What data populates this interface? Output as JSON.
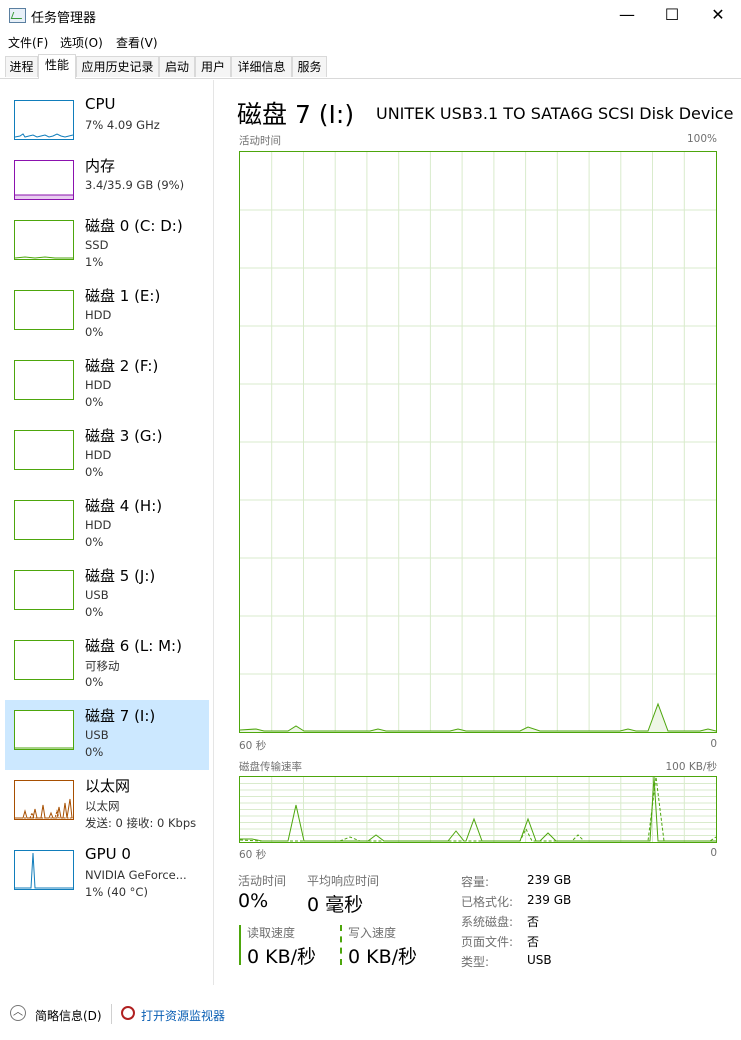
{
  "window": {
    "title": "任务管理器",
    "minimize": "—",
    "maximize": "☐",
    "close": "✕"
  },
  "menu": [
    "文件(F)",
    "选项(O)",
    "查看(V)"
  ],
  "tabs": [
    "进程",
    "性能",
    "应用历史记录",
    "启动",
    "用户",
    "详细信息",
    "服务"
  ],
  "active_tab": "性能",
  "sidebar": [
    {
      "name": "CPU",
      "sub": "7%  4.09 GHz",
      "val": "",
      "color": "#117dbb"
    },
    {
      "name": "内存",
      "sub": "3.4/35.9 GB (9%)",
      "val": "",
      "color": "#8b12ae"
    },
    {
      "name": "磁盘 0 (C: D:)",
      "sub": "SSD",
      "val": "1%",
      "color": "#4da60c"
    },
    {
      "name": "磁盘 1 (E:)",
      "sub": "HDD",
      "val": "0%",
      "color": "#4da60c"
    },
    {
      "name": "磁盘 2 (F:)",
      "sub": "HDD",
      "val": "0%",
      "color": "#4da60c"
    },
    {
      "name": "磁盘 3 (G:)",
      "sub": "HDD",
      "val": "0%",
      "color": "#4da60c"
    },
    {
      "name": "磁盘 4 (H:)",
      "sub": "HDD",
      "val": "0%",
      "color": "#4da60c"
    },
    {
      "name": "磁盘 5 (J:)",
      "sub": "USB",
      "val": "0%",
      "color": "#4da60c"
    },
    {
      "name": "磁盘 6 (L: M:)",
      "sub": "可移动",
      "val": "0%",
      "color": "#4da60c"
    },
    {
      "name": "磁盘 7 (I:)",
      "sub": "USB",
      "val": "0%",
      "color": "#4da60c"
    },
    {
      "name": "以太网",
      "sub": "以太网",
      "val": "发送: 0  接收: 0 Kbps",
      "color": "#a74f01"
    },
    {
      "name": "GPU 0",
      "sub": "NVIDIA GeForce...",
      "val": "1% (40 °C)",
      "color": "#117dbb"
    }
  ],
  "selected_index": 9,
  "main": {
    "title": "磁盘 7 (I:)",
    "device": "UNITEK USB3.1 TO SATA6G SCSI Disk Device",
    "graph1": {
      "label": "活动时间",
      "max": "100%",
      "time_left": "60 秒",
      "time_right": "0"
    },
    "graph2": {
      "label": "磁盘传输速率",
      "max": "100 KB/秒",
      "time_left": "60 秒",
      "time_right": "0"
    },
    "stats": {
      "active_time_label": "活动时间",
      "active_time": "0%",
      "response_label": "平均响应时间",
      "response": "0 毫秒",
      "read_label": "读取速度",
      "read": "0 KB/秒",
      "write_label": "写入速度",
      "write": "0 KB/秒"
    },
    "info": [
      {
        "label": "容量:",
        "value": "239 GB"
      },
      {
        "label": "已格式化:",
        "value": "239 GB"
      },
      {
        "label": "系统磁盘:",
        "value": "否"
      },
      {
        "label": "页面文件:",
        "value": "否"
      },
      {
        "label": "类型:",
        "value": "USB"
      }
    ]
  },
  "bottom": {
    "summary": "简略信息(D)",
    "monitor": "打开资源监视器"
  },
  "colors": {
    "disk": "#4da60c",
    "selected_bg": "#cce8ff",
    "cpu": "#117dbb",
    "memory": "#8b12ae",
    "ethernet": "#a74f01"
  }
}
